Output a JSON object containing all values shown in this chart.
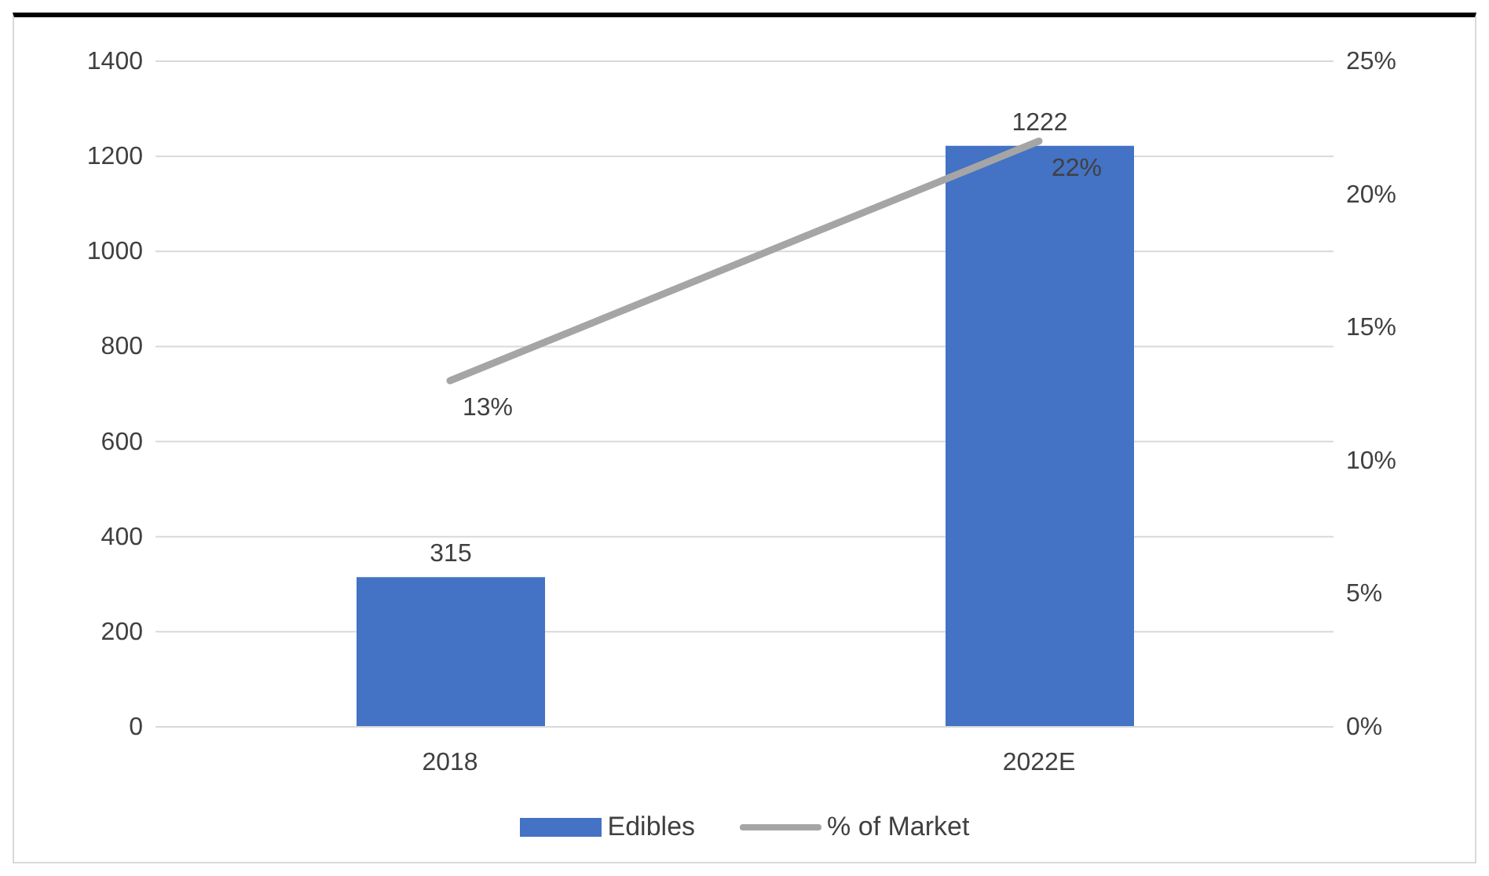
{
  "chart_data": {
    "type": "bar",
    "categories": [
      "2018",
      "2022E"
    ],
    "series": [
      {
        "name": "Edibles",
        "color": "#4472c4",
        "values": [
          315,
          1222
        ],
        "value_labels": [
          "315",
          "1222"
        ]
      },
      {
        "name": "% of Market",
        "type": "line",
        "axis": "y2",
        "color": "#a5a5a5",
        "values": [
          13,
          22
        ],
        "value_labels": [
          "13%",
          "22%"
        ],
        "marker": "none"
      }
    ],
    "ylim": [
      0,
      1400
    ],
    "yticks": [
      0,
      200,
      400,
      600,
      800,
      1000,
      1200,
      1400
    ],
    "y2lim": [
      0,
      25
    ],
    "y2ticks": [
      {
        "value": 0,
        "label": "0%"
      },
      {
        "value": 5,
        "label": "5%"
      },
      {
        "value": 10,
        "label": "10%"
      },
      {
        "value": 15,
        "label": "15%"
      },
      {
        "value": 20,
        "label": "20%"
      },
      {
        "value": 25,
        "label": "25%"
      }
    ],
    "grid": "y",
    "legend": "bottom"
  }
}
